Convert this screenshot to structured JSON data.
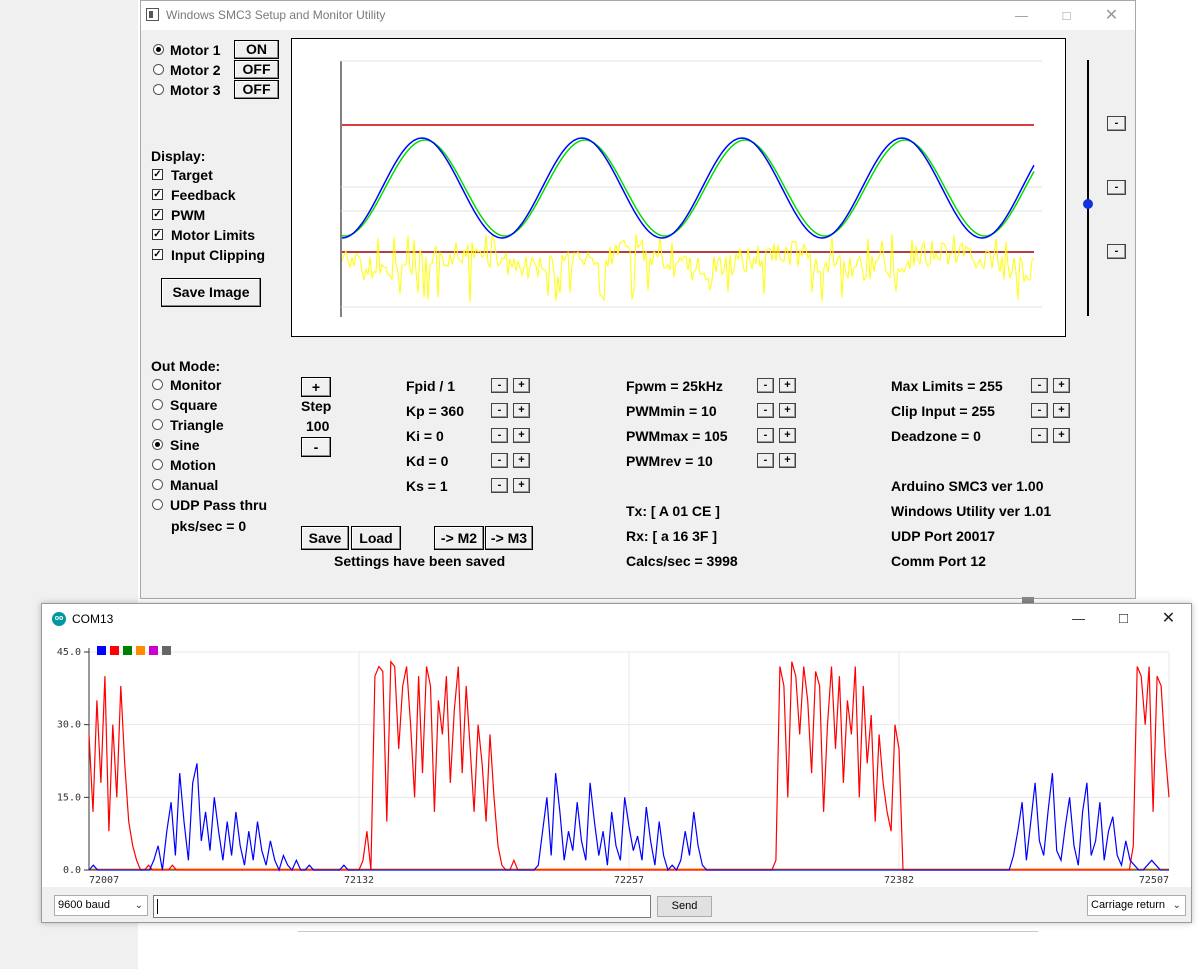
{
  "smc": {
    "title": "Windows SMC3 Setup and Monitor Utility",
    "motors": [
      {
        "label": "Motor 1",
        "state": "ON",
        "selected": true
      },
      {
        "label": "Motor 2",
        "state": "OFF",
        "selected": false
      },
      {
        "label": "Motor 3",
        "state": "OFF",
        "selected": false
      }
    ],
    "display_heading": "Display:",
    "display_options": [
      "Target",
      "Feedback",
      "PWM",
      "Motor Limits",
      "Input Clipping"
    ],
    "save_image_label": "Save Image",
    "out_mode_heading": "Out Mode:",
    "out_modes": [
      "Monitor",
      "Square",
      "Triangle",
      "Sine",
      "Motion",
      "Manual",
      "UDP Pass thru"
    ],
    "selected_out_mode": "Sine",
    "pks_sec": "pks/sec = 0",
    "step": {
      "plus": "+",
      "label": "Step",
      "value": "100",
      "minus": "-"
    },
    "pid_params": [
      "Fpid / 1",
      "Kp = 360",
      "Ki = 0",
      "Kd = 0",
      "Ks = 1"
    ],
    "pwm_params": [
      "Fpwm = 25kHz",
      "PWMmin = 10",
      "PWMmax = 105",
      "PWMrev = 10"
    ],
    "limit_params": [
      "Max Limits = 255",
      "Clip Input = 255",
      "Deadzone = 0"
    ],
    "tx": "Tx: [ A 01 CE ]",
    "rx": "Rx: [ a 16 3F ]",
    "calcs": "Calcs/sec = 3998",
    "info": [
      "Arduino SMC3 ver 1.00",
      "Windows Utility ver 1.01",
      "UDP Port 20017",
      "Comm Port 12"
    ],
    "buttons": {
      "save": "Save",
      "load": "Load",
      "to_m2": "-> M2",
      "to_m3": "-> M3"
    },
    "status": "Settings have been saved",
    "slider_buttons": [
      "-",
      "-",
      "-"
    ],
    "colors": {
      "target": "#0000ff",
      "feedback": "#00cc00",
      "pwm": "#ffff00",
      "limits": "#cc0000"
    }
  },
  "com": {
    "title": "COM13",
    "y_ticks": [
      "45.0",
      "30.0",
      "15.0",
      "0.0"
    ],
    "x_ticks": [
      "72007",
      "72132",
      "72257",
      "72382",
      "72507"
    ],
    "legend_colors": [
      "#0000ff",
      "#ff0000",
      "#008000",
      "#ff8c00",
      "#cc00cc",
      "#666666"
    ],
    "baud": "9600 baud",
    "send_label": "Send",
    "line_ending": "Carriage return"
  },
  "chart_data": {
    "type": "line",
    "x_range": [
      72007,
      72507
    ],
    "ylim": [
      0,
      45
    ],
    "series": [
      {
        "color": "#ff0000",
        "values": [
          28,
          12,
          35,
          18,
          40,
          8,
          30,
          15,
          38,
          22,
          10,
          5,
          2,
          0,
          0,
          1,
          0,
          0,
          0,
          0,
          0,
          1,
          0,
          0,
          0,
          0,
          0,
          0,
          0,
          0,
          0,
          0,
          0,
          0,
          0,
          0,
          0,
          0,
          0,
          0,
          0,
          0,
          0,
          0,
          0,
          0,
          0,
          0,
          0,
          0,
          0,
          0,
          0,
          0,
          0,
          0,
          0,
          0,
          0,
          0,
          0,
          0,
          0,
          0,
          0,
          0,
          0,
          0,
          0,
          2,
          8,
          0,
          40,
          42,
          41,
          10,
          43,
          42,
          25,
          38,
          42,
          30,
          15,
          40,
          20,
          42,
          38,
          12,
          35,
          28,
          40,
          18,
          33,
          42,
          20,
          38,
          25,
          12,
          30,
          22,
          10,
          28,
          15,
          5,
          1,
          0,
          0,
          2,
          0,
          0,
          0,
          0,
          0,
          0,
          0,
          0,
          0,
          0,
          0,
          0,
          0,
          0,
          0,
          0,
          0,
          0,
          0,
          0,
          0,
          0,
          0,
          0,
          0,
          0,
          0,
          0,
          0,
          0,
          0,
          0,
          0,
          0,
          0,
          0,
          0,
          0,
          0,
          0,
          0,
          0,
          0,
          0,
          0,
          0,
          0,
          0,
          0,
          0,
          0,
          0,
          0,
          0,
          0,
          0,
          0,
          0,
          0,
          0,
          0,
          0,
          0,
          0,
          0,
          2,
          42,
          38,
          15,
          43,
          40,
          28,
          42,
          35,
          20,
          41,
          38,
          12,
          30,
          42,
          25,
          40,
          18,
          35,
          28,
          42,
          15,
          38,
          22,
          32,
          10,
          28,
          18,
          12,
          8,
          30,
          25,
          0,
          0,
          0,
          0,
          0,
          0,
          0,
          0,
          0,
          0,
          0,
          0,
          0,
          0,
          0,
          0,
          0,
          0,
          0,
          0,
          0,
          0,
          0,
          0,
          0,
          0,
          0,
          0,
          0,
          0,
          0,
          0,
          0,
          0,
          0,
          0,
          0,
          0,
          0,
          0,
          0,
          0,
          0,
          0,
          0,
          0,
          0,
          0,
          0,
          0,
          0,
          0,
          0,
          0,
          0,
          0,
          0,
          0,
          5,
          42,
          40,
          30,
          42,
          12,
          40,
          38,
          25,
          15
        ]
      },
      {
        "color": "#0000ff",
        "values": [
          0,
          1,
          0,
          0,
          0,
          0,
          0,
          0,
          0,
          0,
          0,
          0,
          0,
          0,
          0,
          2,
          5,
          0,
          8,
          14,
          3,
          20,
          10,
          2,
          18,
          22,
          6,
          12,
          4,
          15,
          8,
          2,
          10,
          3,
          12,
          5,
          1,
          8,
          2,
          10,
          4,
          1,
          6,
          2,
          0,
          3,
          1,
          0,
          2,
          0,
          0,
          1,
          0,
          0,
          0,
          0,
          0,
          0,
          0,
          1,
          0,
          0,
          0,
          0,
          0,
          0,
          0,
          0,
          0,
          0,
          0,
          0,
          0,
          0,
          0,
          0,
          0,
          0,
          0,
          0,
          0,
          0,
          0,
          0,
          0,
          0,
          0,
          0,
          0,
          0,
          0,
          0,
          0,
          0,
          0,
          0,
          0,
          0,
          0,
          0,
          0,
          0,
          0,
          0,
          1,
          8,
          15,
          3,
          20,
          12,
          2,
          8,
          4,
          14,
          6,
          2,
          18,
          10,
          3,
          8,
          1,
          12,
          5,
          2,
          15,
          9,
          4,
          7,
          2,
          13,
          6,
          1,
          10,
          3,
          0,
          1,
          0,
          2,
          8,
          3,
          12,
          5,
          1,
          0,
          0,
          0,
          0,
          0,
          0,
          0,
          0,
          0,
          0,
          0,
          0,
          0,
          0,
          0,
          0,
          0,
          0,
          0,
          0,
          0,
          0,
          0,
          0,
          0,
          0,
          0,
          0,
          0,
          0,
          0,
          0,
          0,
          0,
          0,
          0,
          0,
          0,
          0,
          0,
          0,
          0,
          0,
          0,
          0,
          0,
          0,
          0,
          0,
          0,
          0,
          0,
          0,
          0,
          0,
          0,
          0,
          0,
          0,
          0,
          0,
          0,
          0,
          0,
          0,
          0,
          0,
          0,
          0,
          0,
          0,
          3,
          8,
          14,
          2,
          10,
          18,
          6,
          3,
          12,
          20,
          4,
          2,
          9,
          15,
          5,
          1,
          12,
          18,
          3,
          6,
          14,
          2,
          8,
          11,
          3,
          1,
          6,
          2,
          1,
          0,
          0,
          1,
          2,
          1,
          0,
          0,
          0
        ]
      }
    ]
  }
}
